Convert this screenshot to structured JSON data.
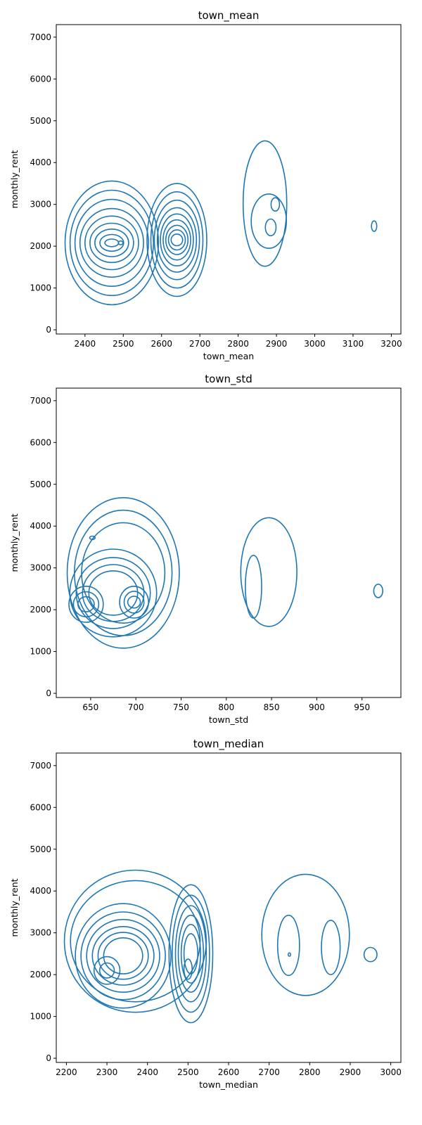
{
  "chart_data": [
    {
      "type": "kde-contour",
      "title": "town_mean",
      "xlabel": "town_mean",
      "ylabel": "monthly_rent",
      "xlim": [
        2325,
        3225
      ],
      "ylim": [
        -100,
        7300
      ],
      "xticks": [
        2400,
        2500,
        2600,
        2700,
        2800,
        2900,
        3000,
        3100,
        3200
      ],
      "yticks": [
        0,
        1000,
        2000,
        3000,
        4000,
        5000,
        6000,
        7000
      ],
      "color": "#1f77b4",
      "clusters": [
        {
          "cx": 2470,
          "cy": 2080,
          "rx": [
            122,
            109,
            96,
            83,
            70,
            57,
            44,
            31,
            18
          ],
          "ry": [
            1480,
            1260,
            1040,
            820,
            640,
            470,
            330,
            200,
            90
          ]
        },
        {
          "cx": 2493,
          "cy": 2080,
          "rx": [
            6
          ],
          "ry": [
            45
          ]
        },
        {
          "cx": 2640,
          "cy": 2150,
          "rx": [
            78,
            68,
            59,
            51,
            43,
            36,
            29,
            22,
            15
          ],
          "ry": [
            1350,
            1150,
            950,
            770,
            620,
            480,
            350,
            240,
            140
          ]
        },
        {
          "cx": 2870,
          "cy": 3020,
          "rx": [
            57
          ],
          "ry": [
            1500
          ]
        },
        {
          "cx": 2880,
          "cy": 2600,
          "rx": [
            46
          ],
          "ry": [
            650
          ]
        },
        {
          "cx": 2897,
          "cy": 3000,
          "rx": [
            11
          ],
          "ry": [
            160
          ]
        },
        {
          "cx": 2885,
          "cy": 2450,
          "rx": [
            14
          ],
          "ry": [
            200
          ]
        },
        {
          "cx": 3155,
          "cy": 2480,
          "rx": [
            7
          ],
          "ry": [
            125
          ]
        }
      ]
    },
    {
      "type": "kde-contour",
      "title": "town_std",
      "xlabel": "town_std",
      "ylabel": "monthly_rent",
      "xlim": [
        612,
        993
      ],
      "ylim": [
        -100,
        7300
      ],
      "xticks": [
        650,
        700,
        750,
        800,
        850,
        900,
        950
      ],
      "yticks": [
        0,
        1000,
        2000,
        3000,
        4000,
        5000,
        6000,
        7000
      ],
      "color": "#1f77b4",
      "clusters": [
        {
          "cx": 686,
          "cy": 2880,
          "rx": [
            62,
            54,
            46
          ],
          "ry": [
            1800,
            1500,
            1200
          ]
        },
        {
          "cx": 675,
          "cy": 2400,
          "rx": [
            48,
            41,
            34,
            27
          ],
          "ry": [
            1050,
            850,
            680,
            530
          ]
        },
        {
          "cx": 645,
          "cy": 2130,
          "rx": [
            19,
            14,
            9
          ],
          "ry": [
            430,
            300,
            180
          ]
        },
        {
          "cx": 698,
          "cy": 2180,
          "rx": [
            16,
            11,
            7
          ],
          "ry": [
            380,
            260,
            140
          ]
        },
        {
          "cx": 652,
          "cy": 3720,
          "rx": [
            3
          ],
          "ry": [
            40
          ]
        },
        {
          "cx": 847,
          "cy": 2900,
          "rx": [
            31
          ],
          "ry": [
            1300
          ]
        },
        {
          "cx": 830,
          "cy": 2550,
          "rx": [
            9
          ],
          "ry": [
            750
          ]
        },
        {
          "cx": 968,
          "cy": 2450,
          "rx": [
            5
          ],
          "ry": [
            160
          ]
        }
      ]
    },
    {
      "type": "kde-contour",
      "title": "town_median",
      "xlabel": "town_median",
      "ylabel": "monthly_rent",
      "xlim": [
        2175,
        3025
      ],
      "ylim": [
        -100,
        7300
      ],
      "xticks": [
        2200,
        2300,
        2400,
        2500,
        2600,
        2700,
        2800,
        2900,
        3000
      ],
      "yticks": [
        0,
        1000,
        2000,
        3000,
        4000,
        5000,
        6000,
        7000
      ],
      "color": "#1f77b4",
      "clusters": [
        {
          "cx": 2370,
          "cy": 2800,
          "rx": [
            175,
            160
          ],
          "ry": [
            1700,
            1450
          ]
        },
        {
          "cx": 2340,
          "cy": 2450,
          "rx": [
            118,
            104,
            90,
            76,
            62,
            48
          ],
          "ry": [
            1250,
            1050,
            870,
            700,
            560,
            430
          ]
        },
        {
          "cx": 2300,
          "cy": 2100,
          "rx": [
            32,
            18
          ],
          "ry": [
            330,
            180
          ]
        },
        {
          "cx": 2507,
          "cy": 2500,
          "rx": [
            54,
            46,
            38,
            31,
            24,
            17
          ],
          "ry": [
            1650,
            1400,
            1150,
            920,
            700,
            480
          ]
        },
        {
          "cx": 2500,
          "cy": 2130,
          "rx": [
            10
          ],
          "ry": [
            240
          ]
        },
        {
          "cx": 2790,
          "cy": 2950,
          "rx": [
            108
          ],
          "ry": [
            1450
          ]
        },
        {
          "cx": 2748,
          "cy": 2700,
          "rx": [
            27
          ],
          "ry": [
            720
          ]
        },
        {
          "cx": 2852,
          "cy": 2650,
          "rx": [
            23
          ],
          "ry": [
            650
          ]
        },
        {
          "cx": 2750,
          "cy": 2480,
          "rx": [
            3
          ],
          "ry": [
            40
          ]
        },
        {
          "cx": 2950,
          "cy": 2480,
          "rx": [
            16
          ],
          "ry": [
            170
          ]
        }
      ]
    }
  ]
}
